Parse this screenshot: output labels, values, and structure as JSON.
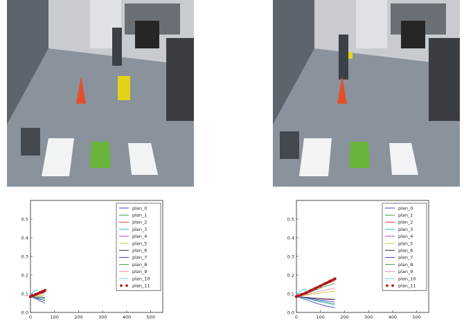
{
  "colors": {
    "floor": "#8a929c",
    "cone": "#e2502a",
    "green_block": "#6ab43b",
    "white_block": "#f1f3f5",
    "yellow_sign": "#e3d21a"
  },
  "panels": [
    {
      "id": "left",
      "chart_data": {
        "type": "line",
        "xlim": [
          0,
          550
        ],
        "ylim": [
          0,
          0.6
        ],
        "x_ticks": [
          "0",
          "100",
          "200",
          "300",
          "400",
          "500"
        ],
        "y_ticks": [
          "0.0",
          "0.1",
          "0.2",
          "0.3",
          "0.4",
          "0.5"
        ],
        "legend_position": "top-right",
        "series": [
          {
            "name": "plan_0",
            "color": "#2b2bd6",
            "x": [
              0,
              20,
              40,
              60
            ],
            "y": [
              0.085,
              0.08,
              0.072,
              0.062
            ]
          },
          {
            "name": "plan_1",
            "color": "#2e8b2e",
            "x": [
              0,
              20,
              40,
              60
            ],
            "y": [
              0.085,
              0.092,
              0.1,
              0.108
            ]
          },
          {
            "name": "plan_2",
            "color": "#d62a2a",
            "x": [
              0,
              20,
              40,
              60
            ],
            "y": [
              0.085,
              0.095,
              0.105,
              0.115
            ]
          },
          {
            "name": "plan_3",
            "color": "#1fb7b7",
            "x": [
              0,
              10,
              20,
              30
            ],
            "y": [
              0.085,
              0.11,
              0.12,
              0.118
            ]
          },
          {
            "name": "plan_4",
            "color": "#b82ab8",
            "x": [
              0,
              20,
              40,
              60
            ],
            "y": [
              0.085,
              0.08,
              0.078,
              0.075
            ]
          },
          {
            "name": "plan_5",
            "color": "#c9c21e",
            "x": [
              0,
              20,
              40,
              60
            ],
            "y": [
              0.085,
              0.088,
              0.09,
              0.092
            ]
          },
          {
            "name": "plan_6",
            "color": "#111111",
            "x": [
              0,
              20,
              40,
              60
            ],
            "y": [
              0.085,
              0.083,
              0.082,
              0.08
            ]
          },
          {
            "name": "plan_7",
            "color": "#2b2bd6",
            "x": [
              0,
              20,
              40,
              60
            ],
            "y": [
              0.085,
              0.075,
              0.062,
              0.05
            ]
          },
          {
            "name": "plan_8",
            "color": "#2e8b2e",
            "x": [
              0,
              20,
              40,
              60
            ],
            "y": [
              0.085,
              0.078,
              0.07,
              0.065
            ]
          },
          {
            "name": "plan_9",
            "color": "#ff6fa6",
            "x": [
              0,
              20,
              40,
              60
            ],
            "y": [
              0.085,
              0.09,
              0.098,
              0.104
            ]
          },
          {
            "name": "plan_10",
            "color": "#5bc8e6",
            "x": [
              0,
              20,
              40,
              60
            ],
            "y": [
              0.085,
              0.082,
              0.078,
              0.073
            ]
          },
          {
            "name": "plan_11",
            "color": "#b01515",
            "marker": "dots",
            "x": [
              0,
              10,
              20,
              30,
              40,
              50,
              60
            ],
            "y": [
              0.085,
              0.09,
              0.095,
              0.1,
              0.106,
              0.112,
              0.118
            ]
          }
        ]
      }
    },
    {
      "id": "right",
      "chart_data": {
        "type": "line",
        "xlim": [
          0,
          550
        ],
        "ylim": [
          0,
          0.6
        ],
        "x_ticks": [
          "0",
          "100",
          "200",
          "300",
          "400",
          "500"
        ],
        "y_ticks": [
          "0.0",
          "0.1",
          "0.2",
          "0.3",
          "0.4",
          "0.5"
        ],
        "legend_position": "top-right",
        "series": [
          {
            "name": "plan_0",
            "color": "#2b2bd6",
            "x": [
              0,
              40,
              80,
              120,
              160
            ],
            "y": [
              0.085,
              0.078,
              0.07,
              0.062,
              0.055
            ]
          },
          {
            "name": "plan_1",
            "color": "#2e8b2e",
            "x": [
              0,
              40,
              80,
              120,
              160
            ],
            "y": [
              0.085,
              0.1,
              0.12,
              0.14,
              0.155
            ]
          },
          {
            "name": "plan_2",
            "color": "#d62a2a",
            "x": [
              0,
              40,
              80,
              120,
              160
            ],
            "y": [
              0.085,
              0.105,
              0.128,
              0.15,
              0.17
            ]
          },
          {
            "name": "plan_3",
            "color": "#1fb7b7",
            "x": [
              0,
              15,
              30,
              45
            ],
            "y": [
              0.085,
              0.115,
              0.125,
              0.12
            ]
          },
          {
            "name": "plan_4",
            "color": "#b82ab8",
            "x": [
              0,
              40,
              80,
              120,
              160
            ],
            "y": [
              0.085,
              0.08,
              0.075,
              0.07,
              0.068
            ]
          },
          {
            "name": "plan_5",
            "color": "#c9c21e",
            "x": [
              0,
              40,
              80,
              120,
              160
            ],
            "y": [
              0.085,
              0.092,
              0.1,
              0.108,
              0.115
            ]
          },
          {
            "name": "plan_6",
            "color": "#111111",
            "x": [
              0,
              40,
              80,
              120,
              160
            ],
            "y": [
              0.085,
              0.08,
              0.076,
              0.072,
              0.07
            ]
          },
          {
            "name": "plan_7",
            "color": "#2b2bd6",
            "x": [
              0,
              40,
              80,
              120,
              160
            ],
            "y": [
              0.085,
              0.068,
              0.05,
              0.035,
              0.025
            ]
          },
          {
            "name": "plan_8",
            "color": "#2e8b2e",
            "x": [
              0,
              40,
              80,
              120,
              160
            ],
            "y": [
              0.085,
              0.075,
              0.065,
              0.055,
              0.045
            ]
          },
          {
            "name": "plan_9",
            "color": "#ff6fa6",
            "x": [
              0,
              40,
              80,
              120,
              160
            ],
            "y": [
              0.085,
              0.095,
              0.108,
              0.12,
              0.13
            ]
          },
          {
            "name": "plan_10",
            "color": "#5bc8e6",
            "x": [
              0,
              40,
              80,
              120,
              160
            ],
            "y": [
              0.085,
              0.075,
              0.062,
              0.05,
              0.04
            ]
          },
          {
            "name": "plan_11",
            "color": "#b01515",
            "marker": "dots",
            "x": [
              0,
              20,
              40,
              60,
              80,
              100,
              120,
              140,
              160
            ],
            "y": [
              0.085,
              0.095,
              0.105,
              0.118,
              0.13,
              0.142,
              0.155,
              0.168,
              0.18
            ]
          }
        ]
      }
    }
  ]
}
